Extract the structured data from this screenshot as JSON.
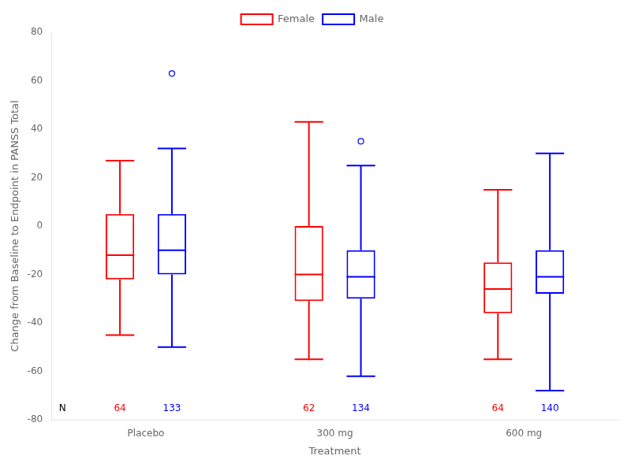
{
  "chart_data": {
    "type": "box",
    "categories": [
      "Placebo",
      "300 mg",
      "600 mg"
    ],
    "series": [
      {
        "name": "Female",
        "color": "#FF0000",
        "values": [
          {
            "whislo": -45,
            "q1": -22,
            "med": -12,
            "q3": 5,
            "whishi": 27,
            "fliers": []
          },
          {
            "whislo": -55,
            "q1": -31,
            "med": -20,
            "q3": 0,
            "whishi": 43,
            "fliers": []
          },
          {
            "whislo": -55,
            "q1": -36,
            "med": -26,
            "q3": -15,
            "whishi": 15,
            "fliers": []
          }
        ],
        "n": [
          64,
          62,
          64
        ]
      },
      {
        "name": "Male",
        "color": "#0000FF",
        "values": [
          {
            "whislo": -50,
            "q1": -20,
            "med": -10,
            "q3": 5,
            "whishi": 32,
            "fliers": [
              63
            ]
          },
          {
            "whislo": -62,
            "q1": -30,
            "med": -21,
            "q3": -10,
            "whishi": 25,
            "fliers": [
              35
            ]
          },
          {
            "whislo": -68,
            "q1": -28,
            "med": -21,
            "q3": -10,
            "whishi": 30,
            "fliers": []
          }
        ],
        "n": [
          133,
          134,
          140
        ]
      }
    ],
    "n_label": "N",
    "xlabel": "Treatment",
    "ylabel": "Change from Baseline to Endpoint in PANSS Total",
    "ylim": [
      -80,
      80
    ],
    "yticks": [
      -80,
      -60,
      -40,
      -20,
      0,
      20,
      40,
      60,
      80
    ],
    "grid": false,
    "legend": "top"
  }
}
